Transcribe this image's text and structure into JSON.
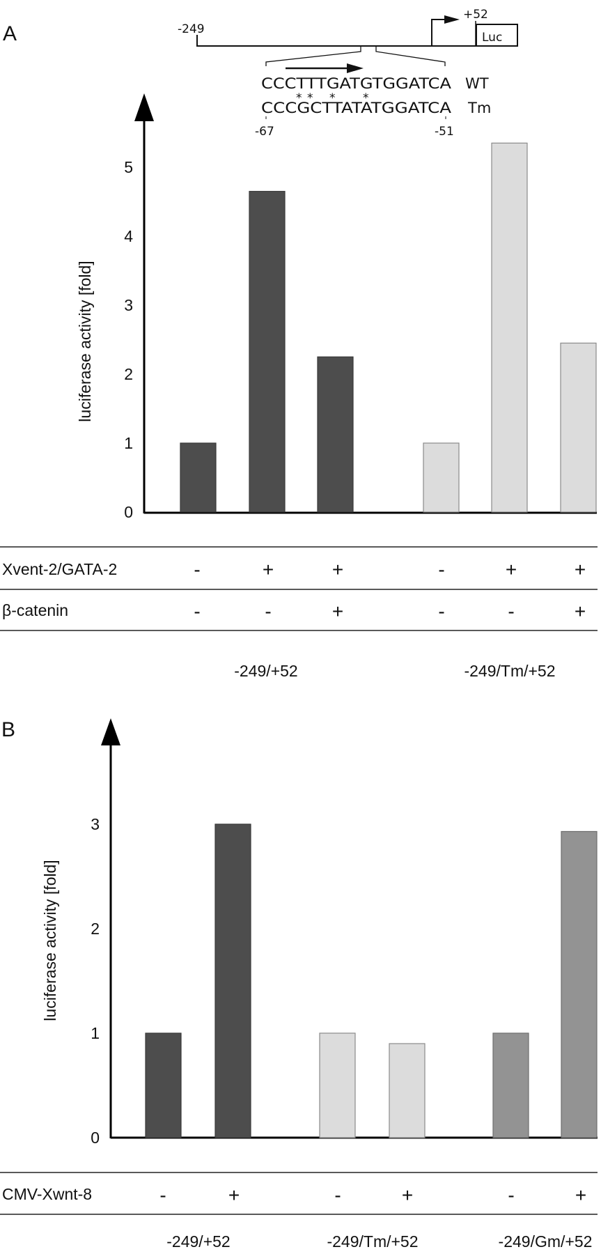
{
  "panels": {
    "a": {
      "letter": "A",
      "construct": {
        "start_label": "-249",
        "end_label": "+52",
        "reporter_label": "Luc",
        "wt_sequence": "CCCTTTGATGTGGATCA",
        "wt_label": "WT",
        "mutation_marks": "** * *",
        "tm_sequence": "CCCGCTTATATGGATCA",
        "tm_label": "Tm",
        "seq_start_label": "-67",
        "seq_end_label": "-51"
      },
      "row_labels": [
        "Xvent-2/GATA-2",
        "β-catenin"
      ],
      "rows": [
        [
          "-",
          "+",
          "+",
          "-",
          "+",
          "+"
        ],
        [
          "-",
          "-",
          "+",
          "-",
          "-",
          "+"
        ]
      ],
      "group_labels": [
        "-249/+52",
        "-249/Tm/+52"
      ]
    },
    "b": {
      "letter": "B",
      "row_labels": [
        "CMV-Xwnt-8"
      ],
      "rows": [
        [
          "-",
          "+",
          "-",
          "+",
          "-",
          "+"
        ]
      ],
      "group_labels": [
        "-249/+52",
        "-249/Tm/+52",
        "-249/Gm/+52"
      ]
    }
  },
  "chart_data": [
    {
      "type": "bar",
      "title": "",
      "xlabel": "",
      "ylabel": "luciferase activity [fold]",
      "ylim": [
        0,
        5.5
      ],
      "yticks": [
        "0",
        "1",
        "2",
        "3",
        "4",
        "5"
      ],
      "grid": false,
      "categories": [
        "-249/+52 (-,-)",
        "-249/+52 (+,-)",
        "-249/+52 (+,+)",
        "-249/Tm/+52 (-,-)",
        "-249/Tm/+52 (+,-)",
        "-249/Tm/+52 (+,+)"
      ],
      "values": [
        1.0,
        4.65,
        2.25,
        1.0,
        5.35,
        2.45
      ],
      "colors": [
        "#4d4d4d",
        "#4d4d4d",
        "#4d4d4d",
        "#dcdcdc",
        "#dcdcdc",
        "#dcdcdc"
      ]
    },
    {
      "type": "bar",
      "title": "",
      "xlabel": "",
      "ylabel": "luciferase activity [fold]",
      "ylim": [
        0,
        3.6
      ],
      "yticks": [
        "0",
        "1",
        "2",
        "3"
      ],
      "grid": false,
      "categories": [
        "-249/+52 (-)",
        "-249/+52 (+)",
        "-249/Tm/+52 (-)",
        "-249/Tm/+52 (+)",
        "-249/Gm/+52 (-)",
        "-249/Gm/+52 (+)"
      ],
      "values": [
        1.0,
        3.0,
        1.0,
        0.9,
        1.0,
        2.93
      ],
      "colors": [
        "#4d4d4d",
        "#4d4d4d",
        "#dcdcdc",
        "#dcdcdc",
        "#939393",
        "#939393"
      ]
    }
  ]
}
